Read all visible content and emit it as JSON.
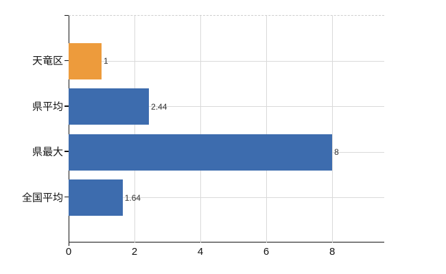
{
  "chart_data": {
    "type": "bar",
    "orientation": "horizontal",
    "title": "",
    "xlabel": "",
    "ylabel": "",
    "categories": [
      "天竜区",
      "県平均",
      "県最大",
      "全国平均"
    ],
    "values": [
      1,
      2.44,
      8,
      1.64
    ],
    "value_labels": [
      "1",
      "2.44",
      "8",
      "1.64"
    ],
    "bar_colors": [
      "#ED9B3C",
      "#3D6CAE",
      "#3D6CAE",
      "#3D6CAE"
    ],
    "x_ticks": [
      0,
      2,
      4,
      6,
      8
    ],
    "xlim": [
      0,
      9.58
    ],
    "grid": true,
    "legend": "none",
    "colors": {
      "background": "#ffffff",
      "grid": "#d9d9d9",
      "axis": "#111111",
      "top_border_dashed": "#cccccc",
      "value_label_text": "#303030",
      "tick_label_text": "#111111"
    }
  }
}
